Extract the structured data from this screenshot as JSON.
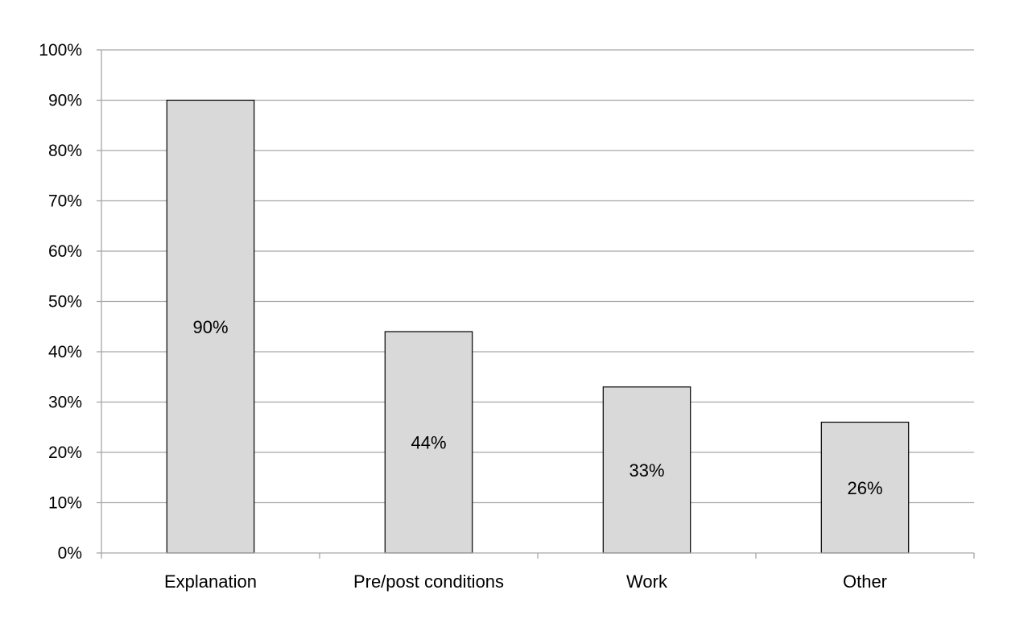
{
  "chart_data": {
    "type": "bar",
    "categories": [
      "Explanation",
      "Pre/post conditions",
      "Work",
      "Other"
    ],
    "values": [
      90,
      44,
      33,
      26
    ],
    "data_labels": [
      "90%",
      "44%",
      "33%",
      "26%"
    ],
    "ylim": [
      0,
      100
    ],
    "yticks": [
      0,
      10,
      20,
      30,
      40,
      50,
      60,
      70,
      80,
      90,
      100
    ],
    "ytick_labels": [
      "0%",
      "10%",
      "20%",
      "30%",
      "40%",
      "50%",
      "60%",
      "70%",
      "80%",
      "90%",
      "100%"
    ],
    "grid": true,
    "legend": "none",
    "bar_color": "#d9d9d9",
    "bar_edge_color": "#000000",
    "grid_color": "#a6a6a6"
  }
}
